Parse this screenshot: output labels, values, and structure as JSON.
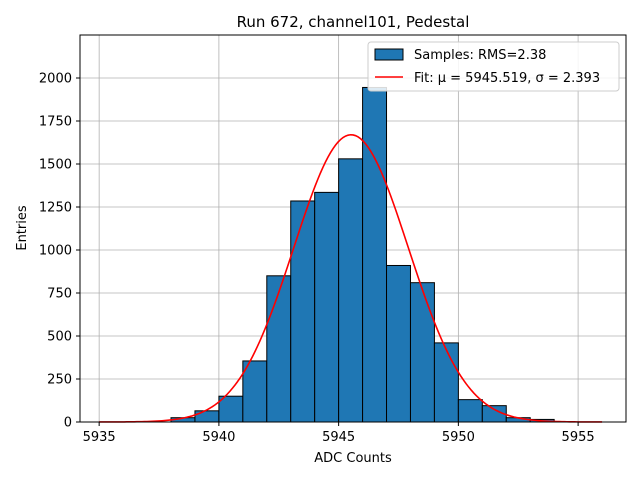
{
  "chart_data": {
    "type": "bar",
    "title": "Run 672, channel101, Pedestal",
    "xlabel": "ADC Counts",
    "ylabel": "Entries",
    "xlim": [
      5934.2,
      5957.0
    ],
    "ylim": [
      0,
      2250
    ],
    "xticks": [
      5935,
      5940,
      5945,
      5950,
      5955
    ],
    "yticks": [
      0,
      250,
      500,
      750,
      1000,
      1250,
      1500,
      1750,
      2000
    ],
    "grid": true,
    "legend_position": "top-right",
    "histogram": {
      "name": "Samples: RMS=2.38",
      "color": "#1f77b4",
      "edge_color": "#000000",
      "bin_edges": [
        5938,
        5939,
        5940,
        5941,
        5942,
        5943,
        5944,
        5945,
        5946,
        5947,
        5948,
        5949,
        5950,
        5951,
        5952,
        5953,
        5954
      ],
      "counts": [
        25,
        65,
        150,
        355,
        850,
        1285,
        1335,
        1530,
        1945,
        910,
        810,
        460,
        130,
        95,
        25,
        15
      ]
    },
    "fit": {
      "name": "Fit: μ = 5945.519, σ = 2.393",
      "color": "#ff0000",
      "mu": 5945.519,
      "sigma": 2.393,
      "amplitude": 1670,
      "x_range": [
        5935,
        5956
      ]
    }
  }
}
